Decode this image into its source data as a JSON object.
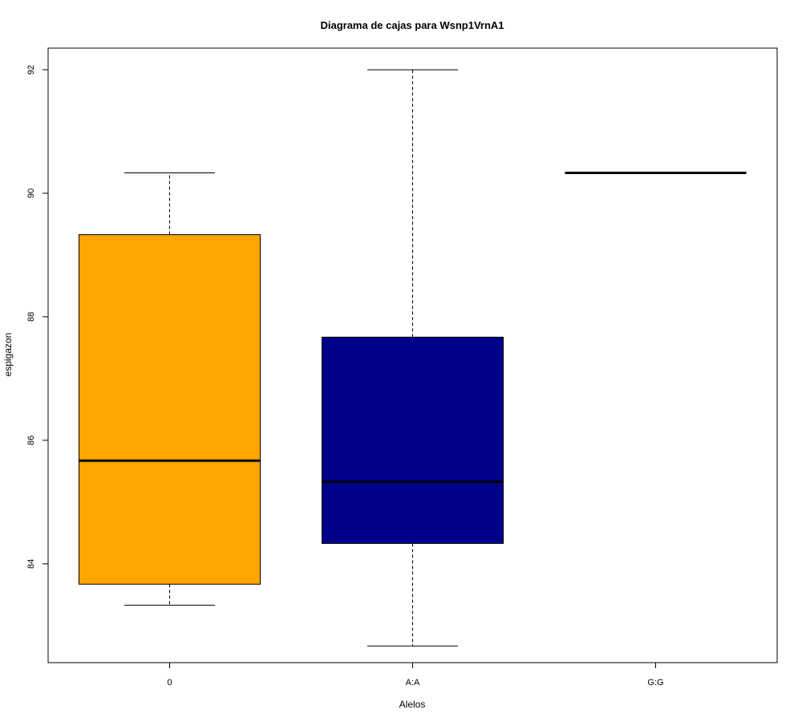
{
  "chart_data": {
    "type": "boxplot",
    "title": "Diagrama de cajas para Wsnp1VrnA1",
    "xlabel": "Alelos",
    "ylabel": "espigazon",
    "ylim": [
      82.4,
      92.35
    ],
    "yticks": [
      "84",
      "86",
      "88",
      "90",
      "92"
    ],
    "grid": false,
    "categories": [
      "0",
      "A:A",
      "G:G"
    ],
    "boxes": [
      {
        "category": "0",
        "whisker_low": 83.33,
        "q1": 83.67,
        "median": 85.67,
        "q3": 89.33,
        "whisker_high": 90.33,
        "color": "#FFA500"
      },
      {
        "category": "A:A",
        "whisker_low": 82.67,
        "q1": 84.33,
        "median": 85.33,
        "q3": 87.67,
        "whisker_high": 92.0,
        "color": "#00008B"
      },
      {
        "category": "G:G",
        "whisker_low": 90.33,
        "q1": 90.33,
        "median": 90.33,
        "q3": 90.33,
        "whisker_high": 90.33,
        "color": "#FFFFFF"
      }
    ]
  }
}
